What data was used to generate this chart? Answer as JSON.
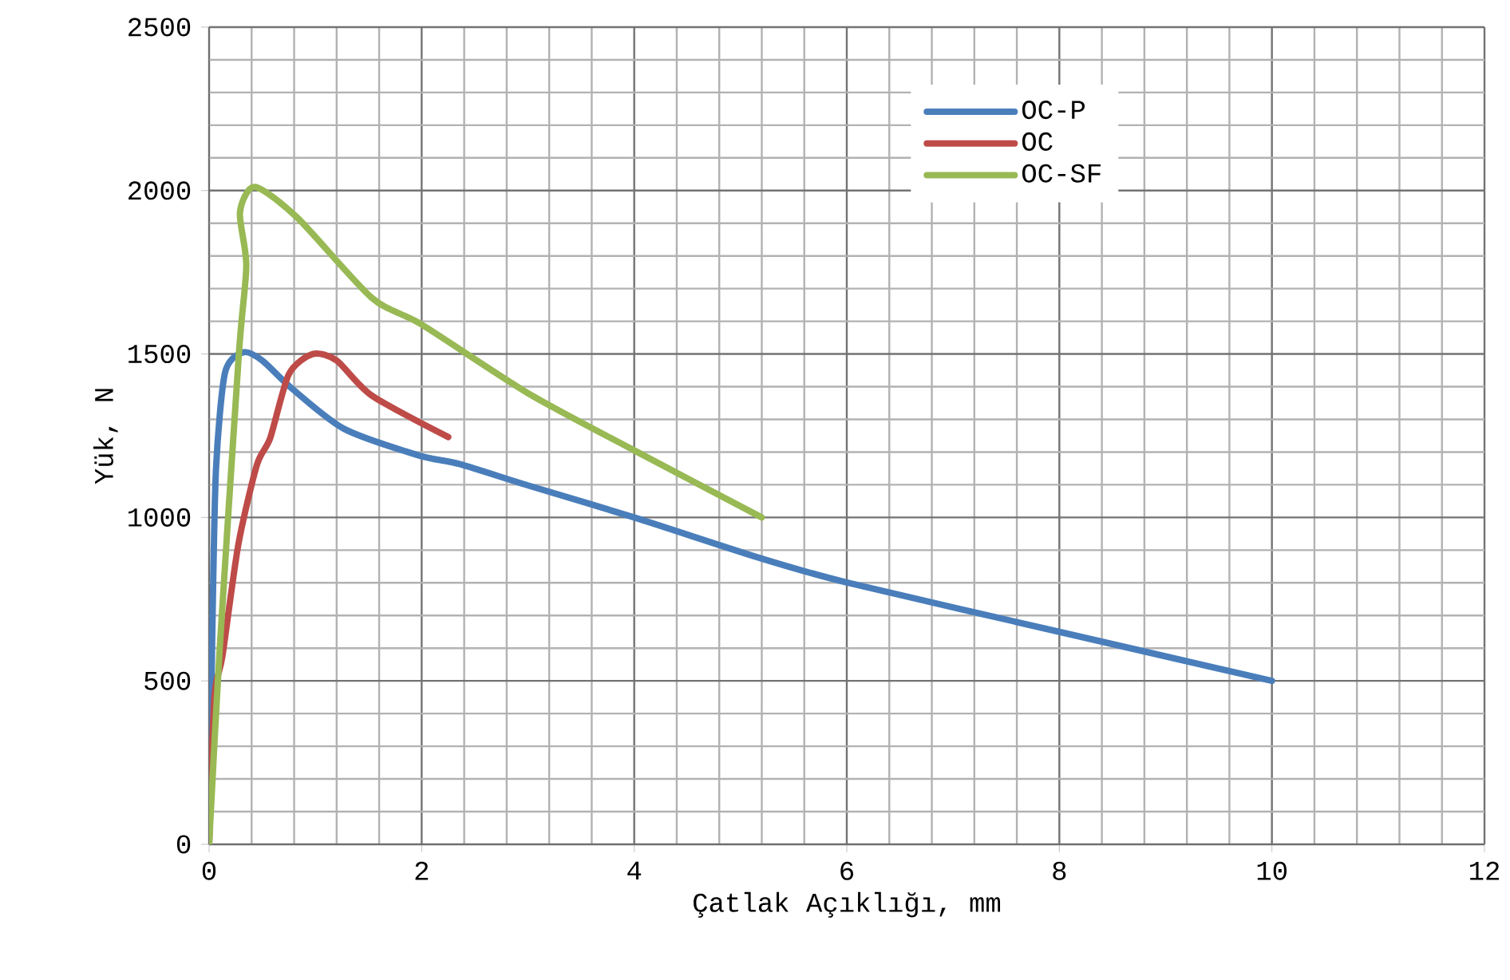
{
  "chart_data": {
    "type": "line",
    "xlabel": "Çatlak Açıklığı, mm",
    "ylabel": "Yük, N",
    "xlim": [
      0,
      12
    ],
    "xticks": [
      0,
      2,
      4,
      6,
      8,
      10,
      12
    ],
    "ylim": [
      0,
      2500
    ],
    "yticks": [
      0,
      500,
      1000,
      1500,
      2000,
      2500
    ],
    "grid": true,
    "legend": "top right",
    "marker": "none",
    "line_style": "solid",
    "series": [
      {
        "name": "OC-P",
        "color": "#4a7ebb",
        "x": [
          0,
          0.03,
          0.065,
          0.15,
          0.32,
          0.5,
          0.78,
          1.27,
          1.97,
          2.36,
          3,
          4,
          5.18,
          6,
          8,
          10
        ],
        "values": [
          0,
          650,
          1150,
          1443,
          1505,
          1480,
          1394,
          1271,
          1190,
          1163,
          1098,
          1000,
          876,
          801,
          650,
          500
        ]
      },
      {
        "name": "OC",
        "color": "#be4b48",
        "x": [
          0,
          0.05,
          0.125,
          0.275,
          0.45,
          0.575,
          0.75,
          0.975,
          1.2,
          1.53,
          2.25
        ],
        "values": [
          0,
          450,
          575,
          917,
          1161,
          1243,
          1438,
          1500,
          1480,
          1373,
          1246
        ]
      },
      {
        "name": "OC-SF",
        "color": "#98b954",
        "x": [
          0,
          0.1,
          0.28,
          0.35,
          0.29,
          0.43,
          0.83,
          1.53,
          2,
          3,
          4,
          5.2
        ],
        "values": [
          0,
          600,
          1500,
          1770,
          1933,
          2011,
          1917,
          1672,
          1590,
          1380,
          1205,
          1000
        ]
      }
    ]
  }
}
